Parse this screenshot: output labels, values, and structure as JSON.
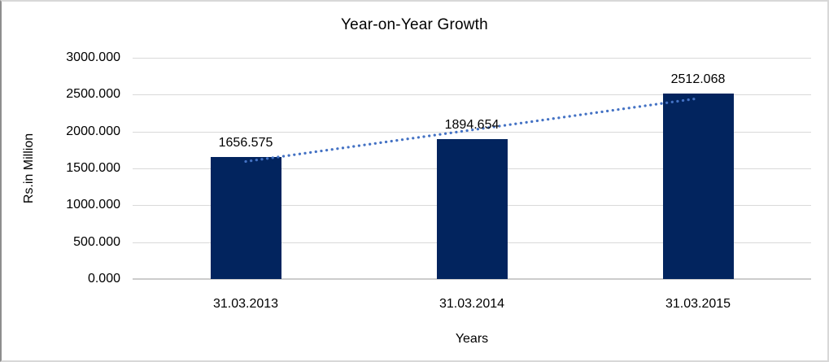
{
  "chart_data": {
    "type": "bar",
    "title": "Year-on-Year Growth",
    "categories": [
      "31.03.2013",
      "31.03.2014",
      "31.03.2015"
    ],
    "values": [
      1656.575,
      1894.654,
      2512.068
    ],
    "data_labels": [
      "1656.575",
      "1894.654",
      "2512.068"
    ],
    "xlabel": "Years",
    "ylabel": "Rs.in Million",
    "ylim": [
      0,
      3000
    ],
    "ytick_step": 500,
    "ytick_labels": [
      "0.000",
      "500.000",
      "1000.000",
      "1500.000",
      "2000.000",
      "2500.000",
      "3000.000"
    ],
    "grid": true,
    "legend": "none",
    "trendline": {
      "fit": "linear",
      "style": "dotted",
      "color": "#4472c4"
    },
    "colors": {
      "bar": "#02245e",
      "gridline": "#d9d9d9",
      "text": "#000000",
      "frame_border": "#d8d8d8",
      "frame_border_left": "#8e8e8e",
      "background": "#ffffff"
    }
  }
}
